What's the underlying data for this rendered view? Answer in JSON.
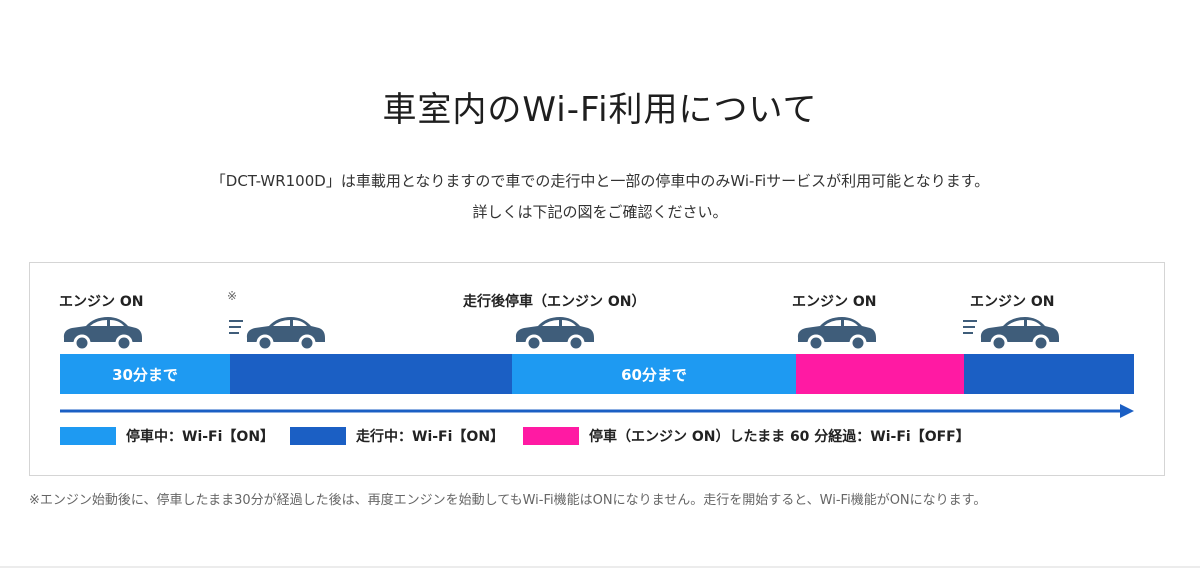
{
  "heading": "車室内のWi-Fi利用について",
  "intro": {
    "line1": "「DCT-WR100D」は車載用となりますので車での走行中と一部の停車中のみWi-Fiサービスが利用可能となります。",
    "line2": "詳しくは下記の図をご確認ください。"
  },
  "diagram": {
    "car_labels": [
      "エンジン ON",
      "走行後停車（エンジン ON）",
      "エンジン ON",
      "エンジン ON"
    ],
    "note_mark": "※",
    "segments": [
      {
        "label": "30分まで",
        "state": "stopped",
        "color": "#1e9af2"
      },
      {
        "label": "",
        "state": "driving",
        "color": "#1b5fc4"
      },
      {
        "label": "60分まで",
        "state": "stopped",
        "color": "#1e9af2"
      },
      {
        "label": "",
        "state": "stopped-over-60",
        "color": "#ff1aa3"
      },
      {
        "label": "",
        "state": "driving",
        "color": "#1b5fc4"
      }
    ],
    "cars": [
      {
        "icon": "parked-car-icon",
        "moving": false
      },
      {
        "icon": "moving-car-icon",
        "moving": true
      },
      {
        "icon": "parked-car-icon",
        "moving": false
      },
      {
        "icon": "parked-car-icon",
        "moving": false
      },
      {
        "icon": "moving-car-icon",
        "moving": true
      }
    ],
    "car_color": "#3f5d7a",
    "arrow_color": "#1b5fc4",
    "legend": [
      {
        "color": "#1e9af2",
        "text": "停車中：Wi-Fi【ON】"
      },
      {
        "color": "#1b5fc4",
        "text": "走行中：Wi-Fi【ON】"
      },
      {
        "color": "#ff1aa3",
        "text": "停車（エンジン ON）したまま 60 分経過：Wi-Fi【OFF】"
      }
    ]
  },
  "footnote": "※エンジン始動後に、停車したまま30分が経過した後は、再度エンジンを始動してもWi-Fi機能はONになりません。走行を開始すると、Wi-Fi機能がONになります。"
}
